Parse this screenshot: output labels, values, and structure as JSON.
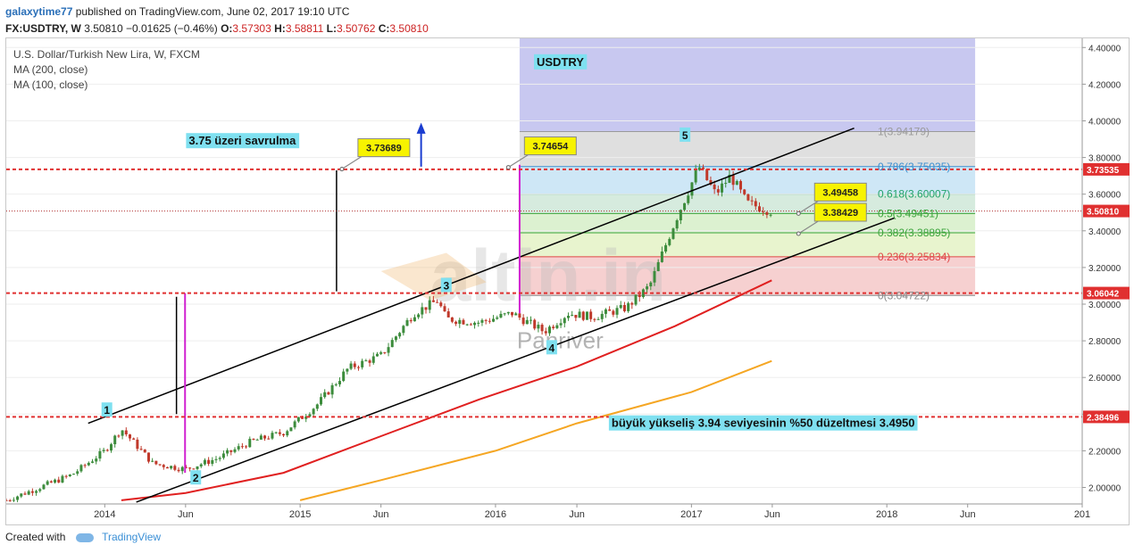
{
  "header": {
    "publisher": "galaxytime77",
    "published_text": "published on TradingView.com, June 02, 2017 19:10 UTC",
    "symbol": "FX:USDTRY, W",
    "last": "3.50810",
    "change": "−0.01625 (−0.46%)",
    "o_label": "O:",
    "o_value": "3.57303",
    "h_label": "H:",
    "h_value": "3.58811",
    "l_label": "L:",
    "l_value": "3.50762",
    "c_label": "C:",
    "c_value": "3.50810"
  },
  "legend": [
    "U.S. Dollar/Turkish New Lira, W, FXCM",
    "MA (200, close)",
    "MA (100, close)"
  ],
  "footer": {
    "created_with": "Created with",
    "brand": "TradingView"
  },
  "watermark": {
    "main": "altin.in",
    "sub": "Panriver"
  },
  "colors": {
    "bull": "#3c8c3c",
    "bear": "#c0392b",
    "ma200": "#e02020",
    "ma100": "#f5a623",
    "channel": "#000000",
    "dashed": "#e03030",
    "price_tag": "#e03030",
    "callout": "#f7f300",
    "text_label_bg": "#7fe0f0"
  },
  "chart_data": {
    "type": "line",
    "title": "U.S. Dollar/Turkish New Lira, W, FXCM",
    "x_ticks": [
      "2014",
      "Jun",
      "2015",
      "Jun",
      "2016",
      "Jun",
      "2017",
      "Jun",
      "2018",
      "Jun",
      "201"
    ],
    "x_range": [
      "2013-07-01",
      "2019-01-01"
    ],
    "y_range": [
      1.91,
      4.45
    ],
    "y_ticks": [
      "4.40000",
      "4.20000",
      "4.00000",
      "3.80000",
      "3.60000",
      "3.40000",
      "3.20000",
      "3.00000",
      "2.80000",
      "2.60000",
      "2.40000",
      "2.20000",
      "2.00000"
    ],
    "series": [
      {
        "name": "U.S. Dollar/Turkish New Lira, W, FXCM",
        "x": [
          "2013-07-01",
          "2013-09-01",
          "2013-11-01",
          "2014-01-01",
          "2014-02-01",
          "2014-04-01",
          "2014-06-01",
          "2014-08-01",
          "2014-10-01",
          "2014-12-01",
          "2015-02-01",
          "2015-04-01",
          "2015-06-01",
          "2015-08-01",
          "2015-09-15",
          "2015-10-01",
          "2015-12-01",
          "2016-02-01",
          "2016-04-01",
          "2016-05-15",
          "2016-07-01",
          "2016-09-01",
          "2016-10-15",
          "2016-12-01",
          "2017-01-15",
          "2017-02-15",
          "2017-03-15",
          "2017-04-15",
          "2017-05-31"
        ],
        "values": [
          1.93,
          2.0,
          2.07,
          2.2,
          2.32,
          2.13,
          2.1,
          2.16,
          2.25,
          2.3,
          2.45,
          2.65,
          2.72,
          2.95,
          3.02,
          2.92,
          2.9,
          2.95,
          2.85,
          2.95,
          2.93,
          2.98,
          3.1,
          3.45,
          3.75,
          3.6,
          3.7,
          3.55,
          3.508
        ]
      },
      {
        "name": "MA (200, close)",
        "x": [
          "2014-02-01",
          "2014-06-01",
          "2014-12-01",
          "2015-06-01",
          "2015-12-01",
          "2016-06-01",
          "2016-12-01",
          "2017-05-31"
        ],
        "values": [
          1.93,
          1.97,
          2.08,
          2.28,
          2.48,
          2.66,
          2.88,
          3.13
        ]
      },
      {
        "name": "MA (100, close)",
        "x": [
          "2015-01-01",
          "2015-06-01",
          "2016-01-01",
          "2016-06-01",
          "2017-01-01",
          "2017-05-31"
        ],
        "values": [
          1.93,
          2.04,
          2.2,
          2.35,
          2.52,
          2.69
        ]
      }
    ],
    "fib_levels": [
      {
        "label": "1(3.94179)",
        "value": 3.94179,
        "color": "#9a9a9a"
      },
      {
        "label": "0.786(3.75035)",
        "value": 3.75035,
        "color": "#3b8fd0"
      },
      {
        "label": "0.618(3.60007)",
        "value": 3.60007,
        "color": "#22a36a"
      },
      {
        "label": "0.5(3.49451)",
        "value": 3.49451,
        "color": "#3aa33a"
      },
      {
        "label": "0.382(3.38895)",
        "value": 3.38895,
        "color": "#3aa33a"
      },
      {
        "label": "0.236(3.25834)",
        "value": 3.25834,
        "color": "#e04545"
      },
      {
        "label": "0(3.04722)",
        "value": 3.04722,
        "color": "#888888"
      }
    ],
    "horizontal_levels": [
      {
        "label": "3.73535",
        "value": 3.73535
      },
      {
        "label": "3.06042",
        "value": 3.06042
      },
      {
        "label": "2.38496",
        "value": 2.38496
      }
    ],
    "last_price": {
      "label": "3.50810",
      "value": 3.5081
    },
    "callouts": [
      {
        "label": "3.73689",
        "x": "2015-03-20",
        "y": 3.73689
      },
      {
        "label": "3.74654",
        "x": "2016-01-25",
        "y": 3.74654
      },
      {
        "label": "3.49458",
        "x": "2017-07-20",
        "y": 3.49458
      },
      {
        "label": "3.38429",
        "x": "2017-07-20",
        "y": 3.38429
      }
    ],
    "wave_labels": [
      {
        "label": "1",
        "x": "2014-01-05",
        "y": 2.42
      },
      {
        "label": "2",
        "x": "2014-06-20",
        "y": 2.05
      },
      {
        "label": "3",
        "x": "2015-10-01",
        "y": 3.1
      },
      {
        "label": "4",
        "x": "2016-04-15",
        "y": 2.76
      },
      {
        "label": "5",
        "x": "2016-12-20",
        "y": 3.92
      }
    ],
    "annotations": [
      {
        "text": "USDTRY",
        "x": "2016-05-01",
        "y": 4.3
      },
      {
        "text": "3.75 üzeri savrulma",
        "x": "2014-09-15",
        "y": 3.87
      },
      {
        "text": "büyük yükseliş 3.94 seviyesinin %50 düzeltmesi  3.4950",
        "x": "2017-05-15",
        "y": 2.33
      }
    ]
  }
}
